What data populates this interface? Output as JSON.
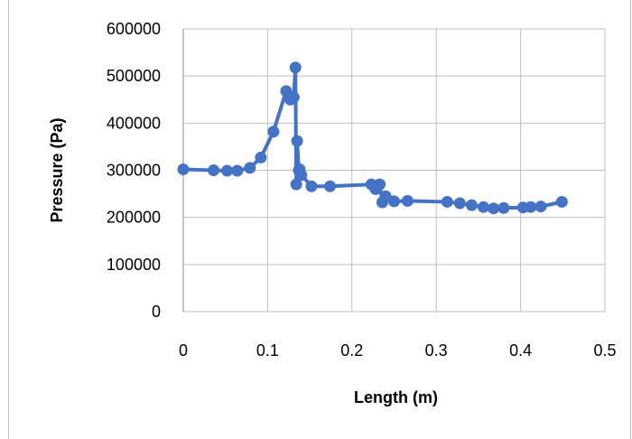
{
  "chart_data": {
    "type": "scatter",
    "title": "",
    "xlabel": "Length (m)",
    "ylabel": "Pressure (Pa)",
    "xlim": [
      0,
      0.5
    ],
    "ylim": [
      0,
      600000
    ],
    "x_ticks": [
      0,
      0.1,
      0.2,
      0.3,
      0.4,
      0.5
    ],
    "y_ticks": [
      0,
      100000,
      200000,
      300000,
      400000,
      500000,
      600000
    ],
    "x_tick_labels": [
      "0",
      "0.1",
      "0.2",
      "0.3",
      "0.4",
      "0.5"
    ],
    "y_tick_labels": [
      "0",
      "100000",
      "200000",
      "300000",
      "400000",
      "500000",
      "600000"
    ],
    "grid": true,
    "legend": "none",
    "marker_color": "#4472c4",
    "series": [
      {
        "x": [
          0,
          0.036,
          0.052,
          0.064,
          0.079,
          0.092,
          0.107,
          0.122,
          0.127,
          0.131,
          0.133,
          0.134,
          0.135,
          0.137,
          0.138,
          0.14,
          0.152,
          0.174,
          0.223,
          0.228,
          0.233,
          0.236,
          0.24,
          0.25,
          0.266,
          0.313,
          0.328,
          0.342,
          0.356,
          0.368,
          0.38,
          0.403,
          0.412,
          0.424,
          0.449
        ],
        "y": [
          302000,
          300000,
          299000,
          299000,
          305000,
          327000,
          382000,
          468000,
          450000,
          455000,
          518000,
          270000,
          362000,
          300000,
          302000,
          290000,
          266000,
          266000,
          270000,
          260000,
          270000,
          232000,
          245000,
          234000,
          235000,
          233000,
          230000,
          226000,
          222000,
          219000,
          220000,
          221000,
          222000,
          223000,
          233000
        ]
      }
    ]
  }
}
